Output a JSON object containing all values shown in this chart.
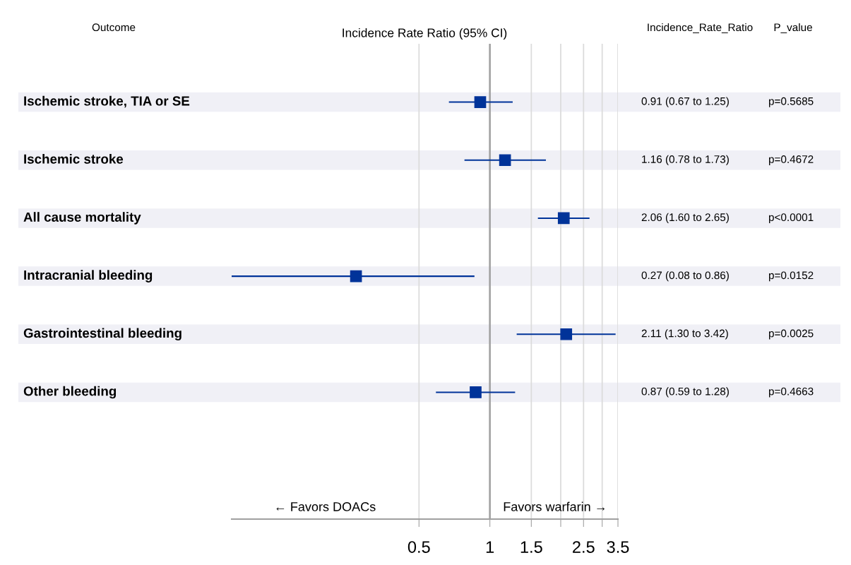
{
  "chart_data": {
    "type": "scatter",
    "orientation": "horizontal",
    "title": "Incidence Rate Ratio (95% CI)",
    "categories": [
      "Ischemic stroke, TIA or SE",
      "Ischemic stroke",
      "All cause mortality",
      "Intracranial bleeding",
      "Gastrointestinal bleeding",
      "Other bleeding"
    ],
    "values": [
      0.91,
      1.16,
      2.06,
      0.27,
      2.11,
      0.87
    ],
    "errors": [
      [
        0.67,
        1.25
      ],
      [
        0.78,
        1.73
      ],
      [
        1.6,
        2.65
      ],
      [
        0.08,
        0.86
      ],
      [
        1.3,
        3.42
      ],
      [
        0.59,
        1.28
      ]
    ],
    "value_labels": [
      "0.91 (0.67 to 1.25)",
      "1.16 (0.78 to 1.73)",
      "2.06 (1.60 to 2.65)",
      "0.27 (0.08 to 0.86)",
      "2.11 (1.30 to 3.42)",
      "0.87 (0.59 to 1.28)"
    ],
    "color": "#003399",
    "marker": "square",
    "log": "x",
    "grid": "x",
    "xlim": [
      0.08,
      3.5
    ],
    "xticks": [
      0.5,
      1,
      1.5,
      {
        "value": 2,
        "label": null
      },
      2.5,
      {
        "value": 3,
        "label": null
      },
      3.5
    ],
    "ref_lines": [
      {
        "axis": "x",
        "value": 1,
        "color": "#a0a0a0"
      }
    ],
    "annotations": [
      "Outcome",
      "Incidence_Rate_Ratio",
      "P_value",
      "← Favors DOACs",
      "Favors warfarin →",
      "p=0.5685",
      "p=0.4672",
      "p<0.0001",
      "p=0.0152",
      "p=0.0025",
      "p=0.4663"
    ],
    "bands": [
      {
        "axis": "y",
        "from": "Ischemic stroke, TIA or SE",
        "to": "Ischemic stroke, TIA or SE",
        "color": "#f0f0f6"
      },
      {
        "axis": "y",
        "from": "Ischemic stroke",
        "to": "Ischemic stroke",
        "color": "#f0f0f6"
      },
      {
        "axis": "y",
        "from": "All cause mortality",
        "to": "All cause mortality",
        "color": "#f0f0f6"
      },
      {
        "axis": "y",
        "from": "Intracranial bleeding",
        "to": "Intracranial bleeding",
        "color": "#f0f0f6"
      },
      {
        "axis": "y",
        "from": "Gastrointestinal bleeding",
        "to": "Gastrointestinal bleeding",
        "color": "#f0f0f6"
      },
      {
        "axis": "y",
        "from": "Other bleeding",
        "to": "Other bleeding",
        "color": "#f0f0f6"
      }
    ]
  }
}
